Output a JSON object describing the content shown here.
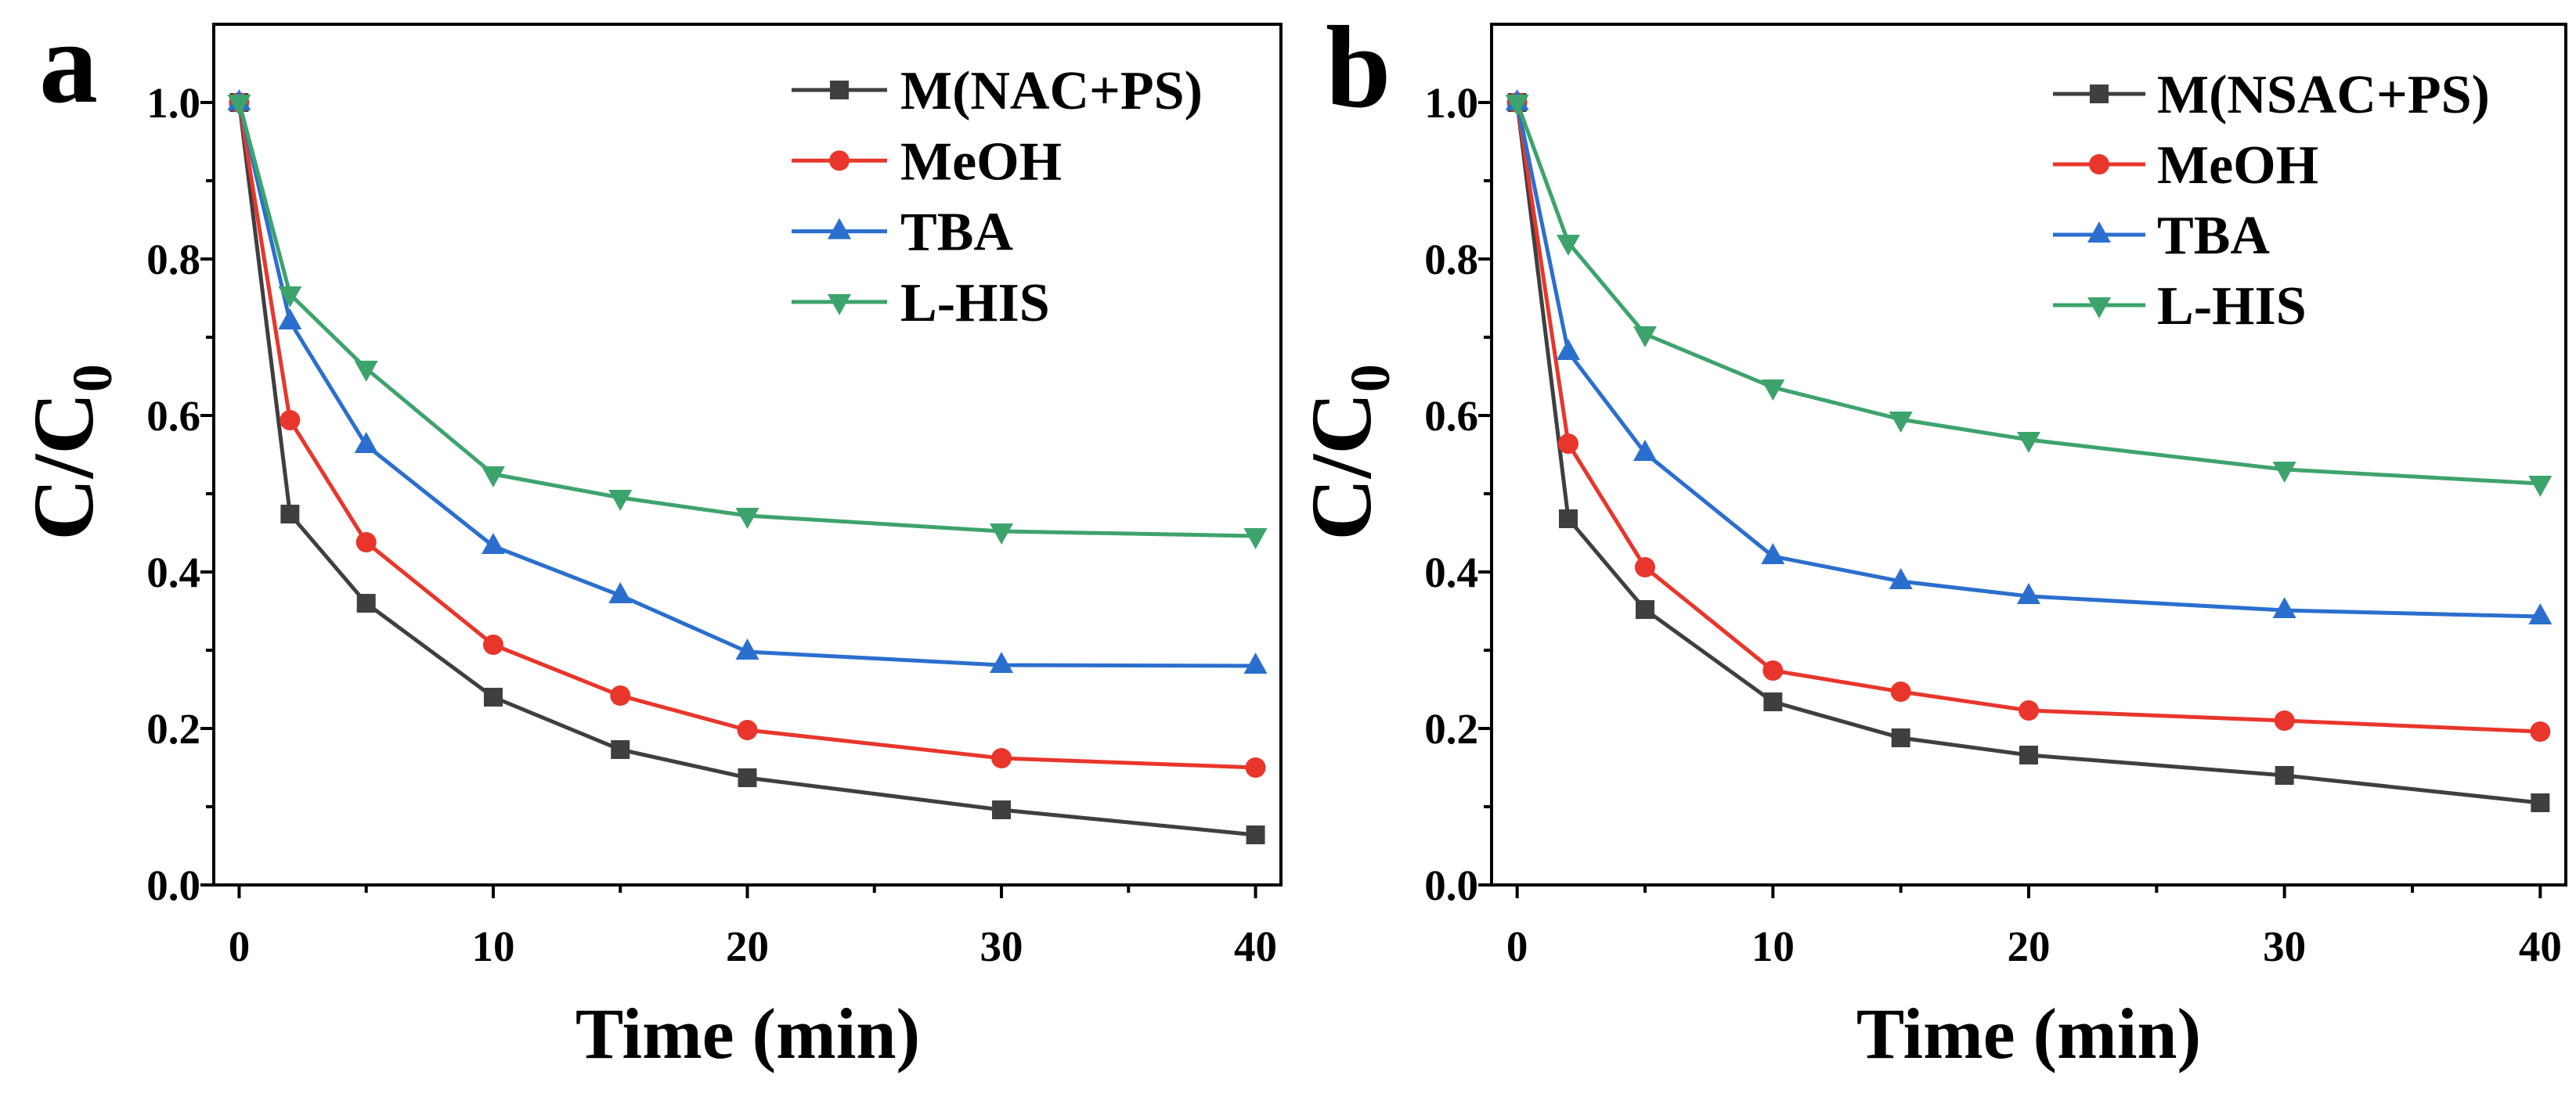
{
  "chart_data": [
    {
      "panel_label": "a",
      "type": "line",
      "x": [
        0,
        2,
        5,
        10,
        15,
        20,
        30,
        40
      ],
      "series": [
        {
          "name": "M(NAC+PS)",
          "color": "#3f3f3f",
          "marker": "square",
          "values": [
            1.0,
            0.474,
            0.36,
            0.24,
            0.173,
            0.137,
            0.096,
            0.064
          ]
        },
        {
          "name": "MeOH",
          "color": "#e8362c",
          "marker": "circle",
          "values": [
            1.0,
            0.594,
            0.438,
            0.307,
            0.242,
            0.198,
            0.162,
            0.15
          ]
        },
        {
          "name": "TBA",
          "color": "#2b6fce",
          "marker": "triangle-up",
          "values": [
            1.0,
            0.72,
            0.562,
            0.433,
            0.37,
            0.298,
            0.281,
            0.28
          ]
        },
        {
          "name": "L-HIS",
          "color": "#3da36c",
          "marker": "triangle-down",
          "values": [
            1.0,
            0.755,
            0.66,
            0.525,
            0.495,
            0.472,
            0.452,
            0.446
          ]
        }
      ],
      "xlabel": "Time (min)",
      "ylabel": {
        "text": "C/C",
        "subscript": "0"
      },
      "xlim": [
        -1,
        41
      ],
      "ylim": [
        0,
        1.1
      ],
      "xticks": [
        0,
        10,
        20,
        30,
        40
      ],
      "xtick_labels": [
        "0",
        "10",
        "20",
        "30",
        "40"
      ],
      "x_minor_ticks": [
        5,
        15,
        25,
        35
      ],
      "yticks": [
        0.0,
        0.2,
        0.4,
        0.6,
        0.8,
        1.0
      ],
      "ytick_labels": [
        "0.0",
        "0.2",
        "0.4",
        "0.6",
        "0.8",
        "1.0"
      ],
      "y_minor_ticks": [
        0.1,
        0.3,
        0.5,
        0.7,
        0.9
      ],
      "grid": false,
      "legend": "top-right"
    },
    {
      "panel_label": "b",
      "type": "line",
      "x": [
        0,
        2,
        5,
        10,
        15,
        20,
        30,
        40
      ],
      "series": [
        {
          "name": "M(NSAC+PS)",
          "color": "#3f3f3f",
          "marker": "square",
          "values": [
            1.0,
            0.468,
            0.352,
            0.234,
            0.188,
            0.166,
            0.14,
            0.105
          ]
        },
        {
          "name": "MeOH",
          "color": "#e8362c",
          "marker": "circle",
          "values": [
            1.0,
            0.564,
            0.406,
            0.274,
            0.247,
            0.223,
            0.21,
            0.196
          ]
        },
        {
          "name": "TBA",
          "color": "#2b6fce",
          "marker": "triangle-up",
          "values": [
            1.0,
            0.681,
            0.552,
            0.42,
            0.388,
            0.369,
            0.351,
            0.343
          ]
        },
        {
          "name": "L-HIS",
          "color": "#3da36c",
          "marker": "triangle-down",
          "values": [
            1.0,
            0.821,
            0.704,
            0.636,
            0.595,
            0.569,
            0.531,
            0.513
          ]
        }
      ],
      "xlabel": "Time (min)",
      "ylabel": {
        "text": "C/C",
        "subscript": "0"
      },
      "xlim": [
        -1,
        41
      ],
      "ylim": [
        0,
        1.1
      ],
      "xticks": [
        0,
        10,
        20,
        30,
        40
      ],
      "xtick_labels": [
        "0",
        "10",
        "20",
        "30",
        "40"
      ],
      "x_minor_ticks": [
        5,
        15,
        25,
        35
      ],
      "yticks": [
        0.0,
        0.2,
        0.4,
        0.6,
        0.8,
        1.0
      ],
      "ytick_labels": [
        "0.0",
        "0.2",
        "0.4",
        "0.6",
        "0.8",
        "1.0"
      ],
      "y_minor_ticks": [
        0.1,
        0.3,
        0.5,
        0.7,
        0.9
      ],
      "grid": false,
      "legend": "top-right"
    }
  ]
}
